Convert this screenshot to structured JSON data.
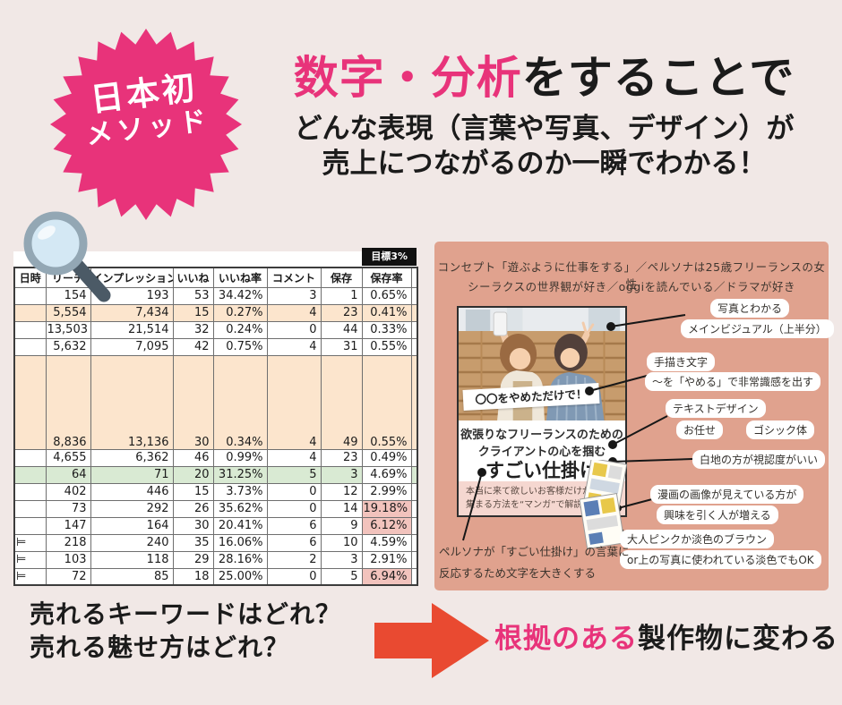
{
  "badge": {
    "line1": "日本初",
    "line2": "メソッド"
  },
  "headline": {
    "accent": "数字・分析",
    "rest": "をすることで",
    "sub1": "どんな表現（言葉や写真、デザイン）が",
    "sub2": "売上につながるのか一瞬でわかる！"
  },
  "table": {
    "goal_label": "目標3%",
    "headers": [
      "日時",
      "リーチ",
      "インプレッション",
      "いいね",
      "いいね率",
      "コメント",
      "保存",
      "保存率"
    ],
    "rows": [
      {
        "cells": [
          "",
          "154",
          "193",
          "53",
          "34.42%",
          "3",
          "1",
          "0.65%"
        ],
        "bg": "white"
      },
      {
        "cells": [
          "",
          "5,554",
          "7,434",
          "15",
          "0.27%",
          "4",
          "23",
          "0.41%"
        ],
        "bg": "peach"
      },
      {
        "cells": [
          "",
          "13,503",
          "21,514",
          "32",
          "0.24%",
          "0",
          "44",
          "0.33%"
        ],
        "bg": "white"
      },
      {
        "cells": [
          "",
          "5,632",
          "7,095",
          "42",
          "0.75%",
          "4",
          "31",
          "0.55%"
        ],
        "bg": "white"
      },
      {
        "cells": [
          "",
          "8,836",
          "13,136",
          "30",
          "0.34%",
          "4",
          "49",
          "0.55%"
        ],
        "bg": "peach",
        "tall": true
      },
      {
        "cells": [
          "",
          "4,655",
          "6,362",
          "46",
          "0.99%",
          "4",
          "23",
          "0.49%"
        ],
        "bg": "white"
      },
      {
        "cells": [
          "",
          "64",
          "71",
          "20",
          "31.25%",
          "5",
          "3",
          "4.69%"
        ],
        "bg": "green",
        "last_white": true
      },
      {
        "cells": [
          "",
          "402",
          "446",
          "15",
          "3.73%",
          "0",
          "12",
          "2.99%"
        ],
        "bg": "white"
      },
      {
        "cells": [
          "",
          "73",
          "292",
          "26",
          "35.62%",
          "0",
          "14",
          "19.18%"
        ],
        "bg": "white",
        "hl": 7
      },
      {
        "cells": [
          "",
          "147",
          "164",
          "30",
          "20.41%",
          "6",
          "9",
          "6.12%"
        ],
        "bg": "white",
        "hl": 7
      },
      {
        "cells": [
          "⊨",
          "218",
          "240",
          "35",
          "16.06%",
          "6",
          "10",
          "4.59%"
        ],
        "bg": "white"
      },
      {
        "cells": [
          "⊨",
          "103",
          "118",
          "29",
          "28.16%",
          "2",
          "3",
          "2.91%"
        ],
        "bg": "white"
      },
      {
        "cells": [
          "⊨",
          "72",
          "85",
          "18",
          "25.00%",
          "0",
          "5",
          "6.94%"
        ],
        "bg": "white",
        "hl": 7
      }
    ]
  },
  "panel": {
    "persona_line1": "コンセプト「遊ぶように仕事をする」／ペルソナは25歳フリーランスの女性",
    "persona_line2": "シーラクスの世界観が好き／oggiを読んでいる／ドラマが好き",
    "post": {
      "label": "〇〇をやめただけで！",
      "title1": "欲張りなフリーランスのための",
      "title2": "クライアントの心を掴む",
      "title3": "すごい仕掛け",
      "strip1": "本当に来て欲しいお客様だけが",
      "strip2": "集まる方法を“マンガ”で解説"
    },
    "annotations": [
      {
        "text": "写真とわかる"
      },
      {
        "text": "メインビジュアル（上半分）"
      },
      {
        "text": "手描き文字"
      },
      {
        "text": "～を「やめる」で非常識感を出す"
      },
      {
        "text": "テキストデザイン"
      },
      {
        "text": "お任せ"
      },
      {
        "text": "ゴシック体"
      },
      {
        "text": "白地の方が視認度がいい"
      },
      {
        "text": "漫画の画像が見えている方が"
      },
      {
        "text": "興味を引く人が増える"
      },
      {
        "text": "大人ピンクか淡色のブラウン"
      },
      {
        "text": "or上の写真に使われている淡色でもOK"
      },
      {
        "text": "ペルソナが「すごい仕掛け」の言葉に"
      },
      {
        "text": "反応するため文字を大きくする"
      }
    ]
  },
  "bottom": {
    "q1": "売れるキーワードはどれ？",
    "q2": "売れる魅せ方はどれ？",
    "accent": "根拠のある",
    "rest": "製作物に変わる"
  },
  "colors": {
    "accent_pink": "#e8337a",
    "panel_salmon": "#e0a28e",
    "arrow_red": "#e94a31",
    "header_pink": "#f4c8c4",
    "header_yellow": "#fdf2cc",
    "row_peach": "#fce5cd",
    "row_green": "#d9ead3",
    "cell_highlight": "#f2c3bd",
    "background": "#f1e8e6"
  }
}
